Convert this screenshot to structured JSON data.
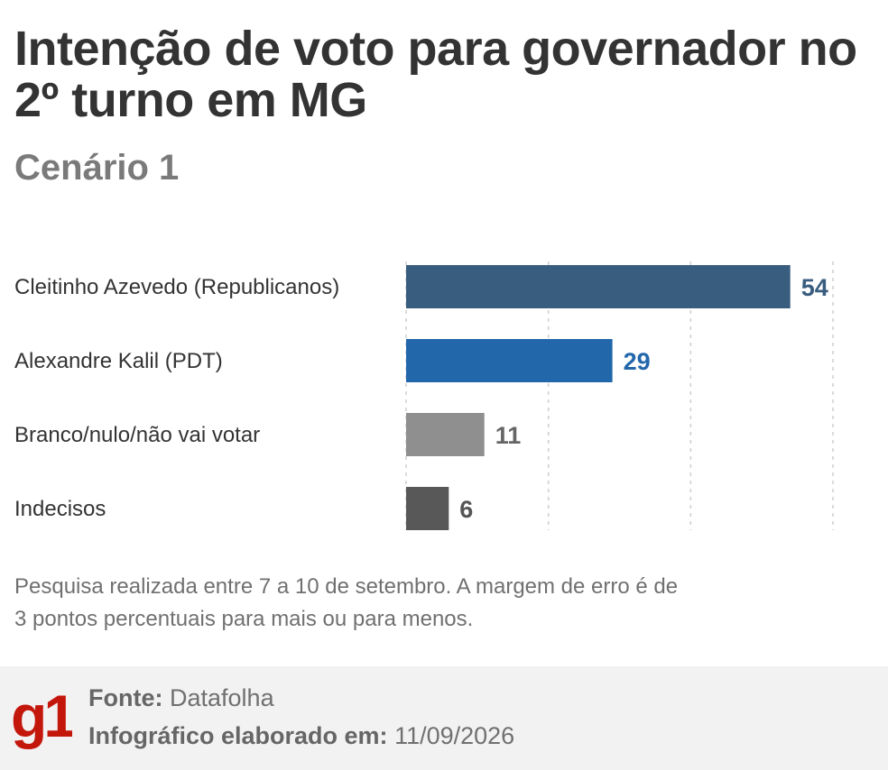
{
  "header": {
    "title": "Intenção de voto para governador no 2º turno em MG",
    "subtitle": "Cenário 1"
  },
  "chart_data": {
    "type": "bar",
    "orientation": "horizontal",
    "categories": [
      "Cleitinho Azevedo (Republicanos)",
      "Alexandre Kalil (PDT)",
      "Branco/nulo/não vai votar",
      "Indecisos"
    ],
    "values": [
      54,
      29,
      11,
      6
    ],
    "colors": [
      "#395d7e",
      "#2367ab",
      "#8f8f8f",
      "#585858"
    ],
    "value_label_colors": [
      "#395d7e",
      "#2367ab",
      "#666666",
      "#555555"
    ],
    "xlim": [
      0,
      60
    ],
    "grid": true,
    "gridline_values": [
      0,
      20,
      40,
      60
    ],
    "title": "Intenção de voto para governador no 2º turno em MG",
    "subtitle": "Cenário 1",
    "xlabel": "",
    "ylabel": ""
  },
  "note": "Pesquisa realizada entre 7 a 10 de setembro. A margem de erro é de 3 pontos percentuais para mais ou para menos.",
  "footer": {
    "logo_text": "g1",
    "logo_color": "#c4170c",
    "source_label": "Fonte:",
    "source_value": "Datafolha",
    "made_label": "Infográfico elaborado em:",
    "made_value": "11/09/2026"
  }
}
